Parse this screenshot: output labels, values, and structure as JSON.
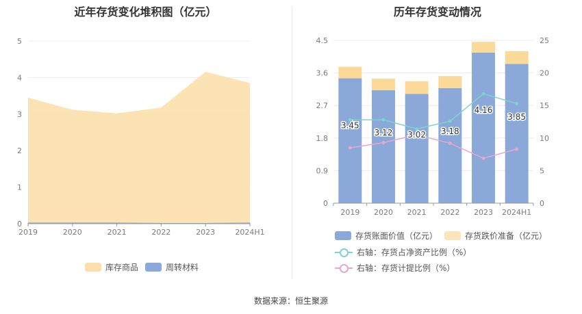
{
  "chart_data": [
    {
      "type": "area",
      "title": "近年存货变化堆积图（亿元）",
      "categories": [
        "2019",
        "2020",
        "2021",
        "2022",
        "2023",
        "2024H1"
      ],
      "y_ticks": [
        "0",
        "1",
        "2",
        "3",
        "4",
        "5"
      ],
      "ylim": [
        0,
        5
      ],
      "series": [
        {
          "name": "库存商品",
          "values": [
            3.43,
            3.1,
            3.0,
            3.17,
            4.15,
            3.83
          ],
          "color": "#fbe0ab"
        },
        {
          "name": "周转材料",
          "values": [
            0.02,
            0.02,
            0.02,
            0.01,
            0.01,
            0.02
          ],
          "color": "#8aa8d8"
        }
      ],
      "stacked": true,
      "legend_position": "bottom"
    },
    {
      "type": "bar",
      "title": "历年存货变动情况",
      "categories": [
        "2019",
        "2020",
        "2021",
        "2022",
        "2023",
        "2024H1"
      ],
      "y_left_ticks": [
        "0",
        "0.9",
        "1.8",
        "2.7",
        "3.6",
        "4.5"
      ],
      "ylim_left": [
        0,
        4.5
      ],
      "y_right_ticks": [
        "0",
        "5",
        "10",
        "15",
        "20",
        "25"
      ],
      "ylim_right": [
        0,
        25
      ],
      "series": [
        {
          "name": "存货账面价值（亿元）",
          "type": "bar",
          "axis": "left",
          "values": [
            3.45,
            3.12,
            3.02,
            3.18,
            4.16,
            3.85
          ],
          "labels": [
            "3.45",
            "3.12",
            "3.02",
            "3.18",
            "4.16",
            "3.85"
          ],
          "color": "#8aa8d8"
        },
        {
          "name": "存货跌价准备（亿元）",
          "type": "bar",
          "axis": "left",
          "values": [
            0.32,
            0.32,
            0.35,
            0.33,
            0.3,
            0.35
          ],
          "color": "#fbd999"
        },
        {
          "name": "右轴：存货占净资产比例（%）",
          "type": "line",
          "axis": "right",
          "values": [
            12.8,
            12.8,
            11.4,
            12.6,
            16.8,
            15.3
          ],
          "color": "#7dd3d0"
        },
        {
          "name": "右轴：存货计提比例（%）",
          "type": "line",
          "axis": "right",
          "values": [
            8.5,
            9.3,
            10.5,
            9.2,
            6.9,
            8.3
          ],
          "color": "#e7a6d1"
        }
      ],
      "legend_position": "bottom"
    }
  ],
  "source_text": "数据来源：恒生聚源"
}
